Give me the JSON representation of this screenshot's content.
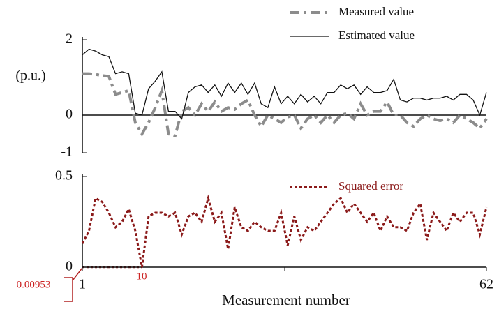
{
  "chart_data": [
    {
      "type": "line",
      "y_label": "(p.u.)",
      "x": [
        1,
        2,
        3,
        4,
        5,
        6,
        7,
        8,
        9,
        10,
        11,
        12,
        13,
        14,
        15,
        16,
        17,
        18,
        19,
        20,
        21,
        22,
        23,
        24,
        25,
        26,
        27,
        28,
        29,
        30,
        31,
        32,
        33,
        34,
        35,
        36,
        37,
        38,
        39,
        40,
        41,
        42,
        43,
        44,
        45,
        46,
        47,
        48,
        49,
        50,
        51,
        52,
        53,
        54,
        55,
        56,
        57,
        58,
        59,
        60,
        61,
        62
      ],
      "xlim": [
        1,
        62
      ],
      "ylim": [
        -1,
        2
      ],
      "yticks": [
        2,
        0,
        -1
      ],
      "series": [
        {
          "name": "Measured value",
          "color": "#8c8c8c",
          "style": "dashdot",
          "values": [
            1.1,
            1.1,
            1.08,
            1.05,
            1.03,
            0.55,
            0.6,
            0.65,
            -0.2,
            -0.5,
            -0.2,
            0.2,
            0.65,
            -0.5,
            -0.55,
            0.1,
            0.2,
            0.0,
            0.3,
            0.1,
            0.35,
            0.1,
            0.2,
            0.15,
            0.3,
            0.4,
            0.0,
            -0.3,
            0.0,
            -0.1,
            -0.2,
            -0.05,
            0.0,
            -0.35,
            -0.1,
            0.0,
            -0.2,
            0.0,
            -0.2,
            0.0,
            0.05,
            -0.1,
            0.3,
            0.0,
            0.1,
            0.1,
            0.35,
            0.0,
            0.0,
            -0.2,
            -0.3,
            -0.1,
            0.0,
            -0.1,
            -0.15,
            -0.1,
            -0.2,
            0.0,
            -0.1,
            -0.2,
            -0.35,
            -0.1
          ]
        },
        {
          "name": "Estimated value",
          "color": "#111111",
          "style": "solid",
          "values": [
            1.6,
            1.75,
            1.7,
            1.6,
            1.55,
            1.1,
            1.15,
            1.1,
            0.05,
            0.0,
            0.7,
            0.9,
            1.15,
            0.1,
            0.1,
            -0.1,
            0.6,
            0.75,
            0.8,
            0.6,
            0.8,
            0.5,
            0.85,
            0.6,
            0.85,
            0.55,
            0.85,
            0.3,
            0.2,
            0.75,
            0.3,
            0.5,
            0.3,
            0.55,
            0.35,
            0.5,
            0.3,
            0.6,
            0.6,
            0.8,
            0.7,
            0.8,
            0.55,
            0.75,
            0.6,
            0.6,
            0.65,
            0.95,
            0.4,
            0.35,
            0.45,
            0.45,
            0.4,
            0.45,
            0.45,
            0.5,
            0.4,
            0.55,
            0.55,
            0.4,
            0.0,
            0.6
          ]
        }
      ]
    },
    {
      "type": "line",
      "x_label": "Measurement number",
      "x": [
        1,
        2,
        3,
        4,
        5,
        6,
        7,
        8,
        9,
        10,
        11,
        12,
        13,
        14,
        15,
        16,
        17,
        18,
        19,
        20,
        21,
        22,
        23,
        24,
        25,
        26,
        27,
        28,
        29,
        30,
        31,
        32,
        33,
        34,
        35,
        36,
        37,
        38,
        39,
        40,
        41,
        42,
        43,
        44,
        45,
        46,
        47,
        48,
        49,
        50,
        51,
        52,
        53,
        54,
        55,
        56,
        57,
        58,
        59,
        60,
        61,
        62
      ],
      "xlim": [
        1,
        62
      ],
      "xticks": [
        1,
        62
      ],
      "ylim": [
        0,
        0.5
      ],
      "yticks": [
        0.5,
        0
      ],
      "annotations": [
        "10",
        "0.00953"
      ],
      "series": [
        {
          "name": "Squared error",
          "color": "#8b1a1a",
          "style": "dotted",
          "values": [
            0.13,
            0.2,
            0.38,
            0.36,
            0.3,
            0.22,
            0.25,
            0.32,
            0.2,
            0.0,
            0.28,
            0.3,
            0.3,
            0.28,
            0.3,
            0.18,
            0.28,
            0.3,
            0.25,
            0.38,
            0.25,
            0.3,
            0.1,
            0.33,
            0.22,
            0.2,
            0.25,
            0.22,
            0.2,
            0.2,
            0.3,
            0.12,
            0.28,
            0.15,
            0.22,
            0.2,
            0.25,
            0.3,
            0.35,
            0.38,
            0.3,
            0.35,
            0.3,
            0.25,
            0.3,
            0.2,
            0.28,
            0.22,
            0.22,
            0.2,
            0.3,
            0.35,
            0.15,
            0.3,
            0.25,
            0.2,
            0.3,
            0.25,
            0.3,
            0.3,
            0.18,
            0.33
          ]
        }
      ]
    }
  ]
}
